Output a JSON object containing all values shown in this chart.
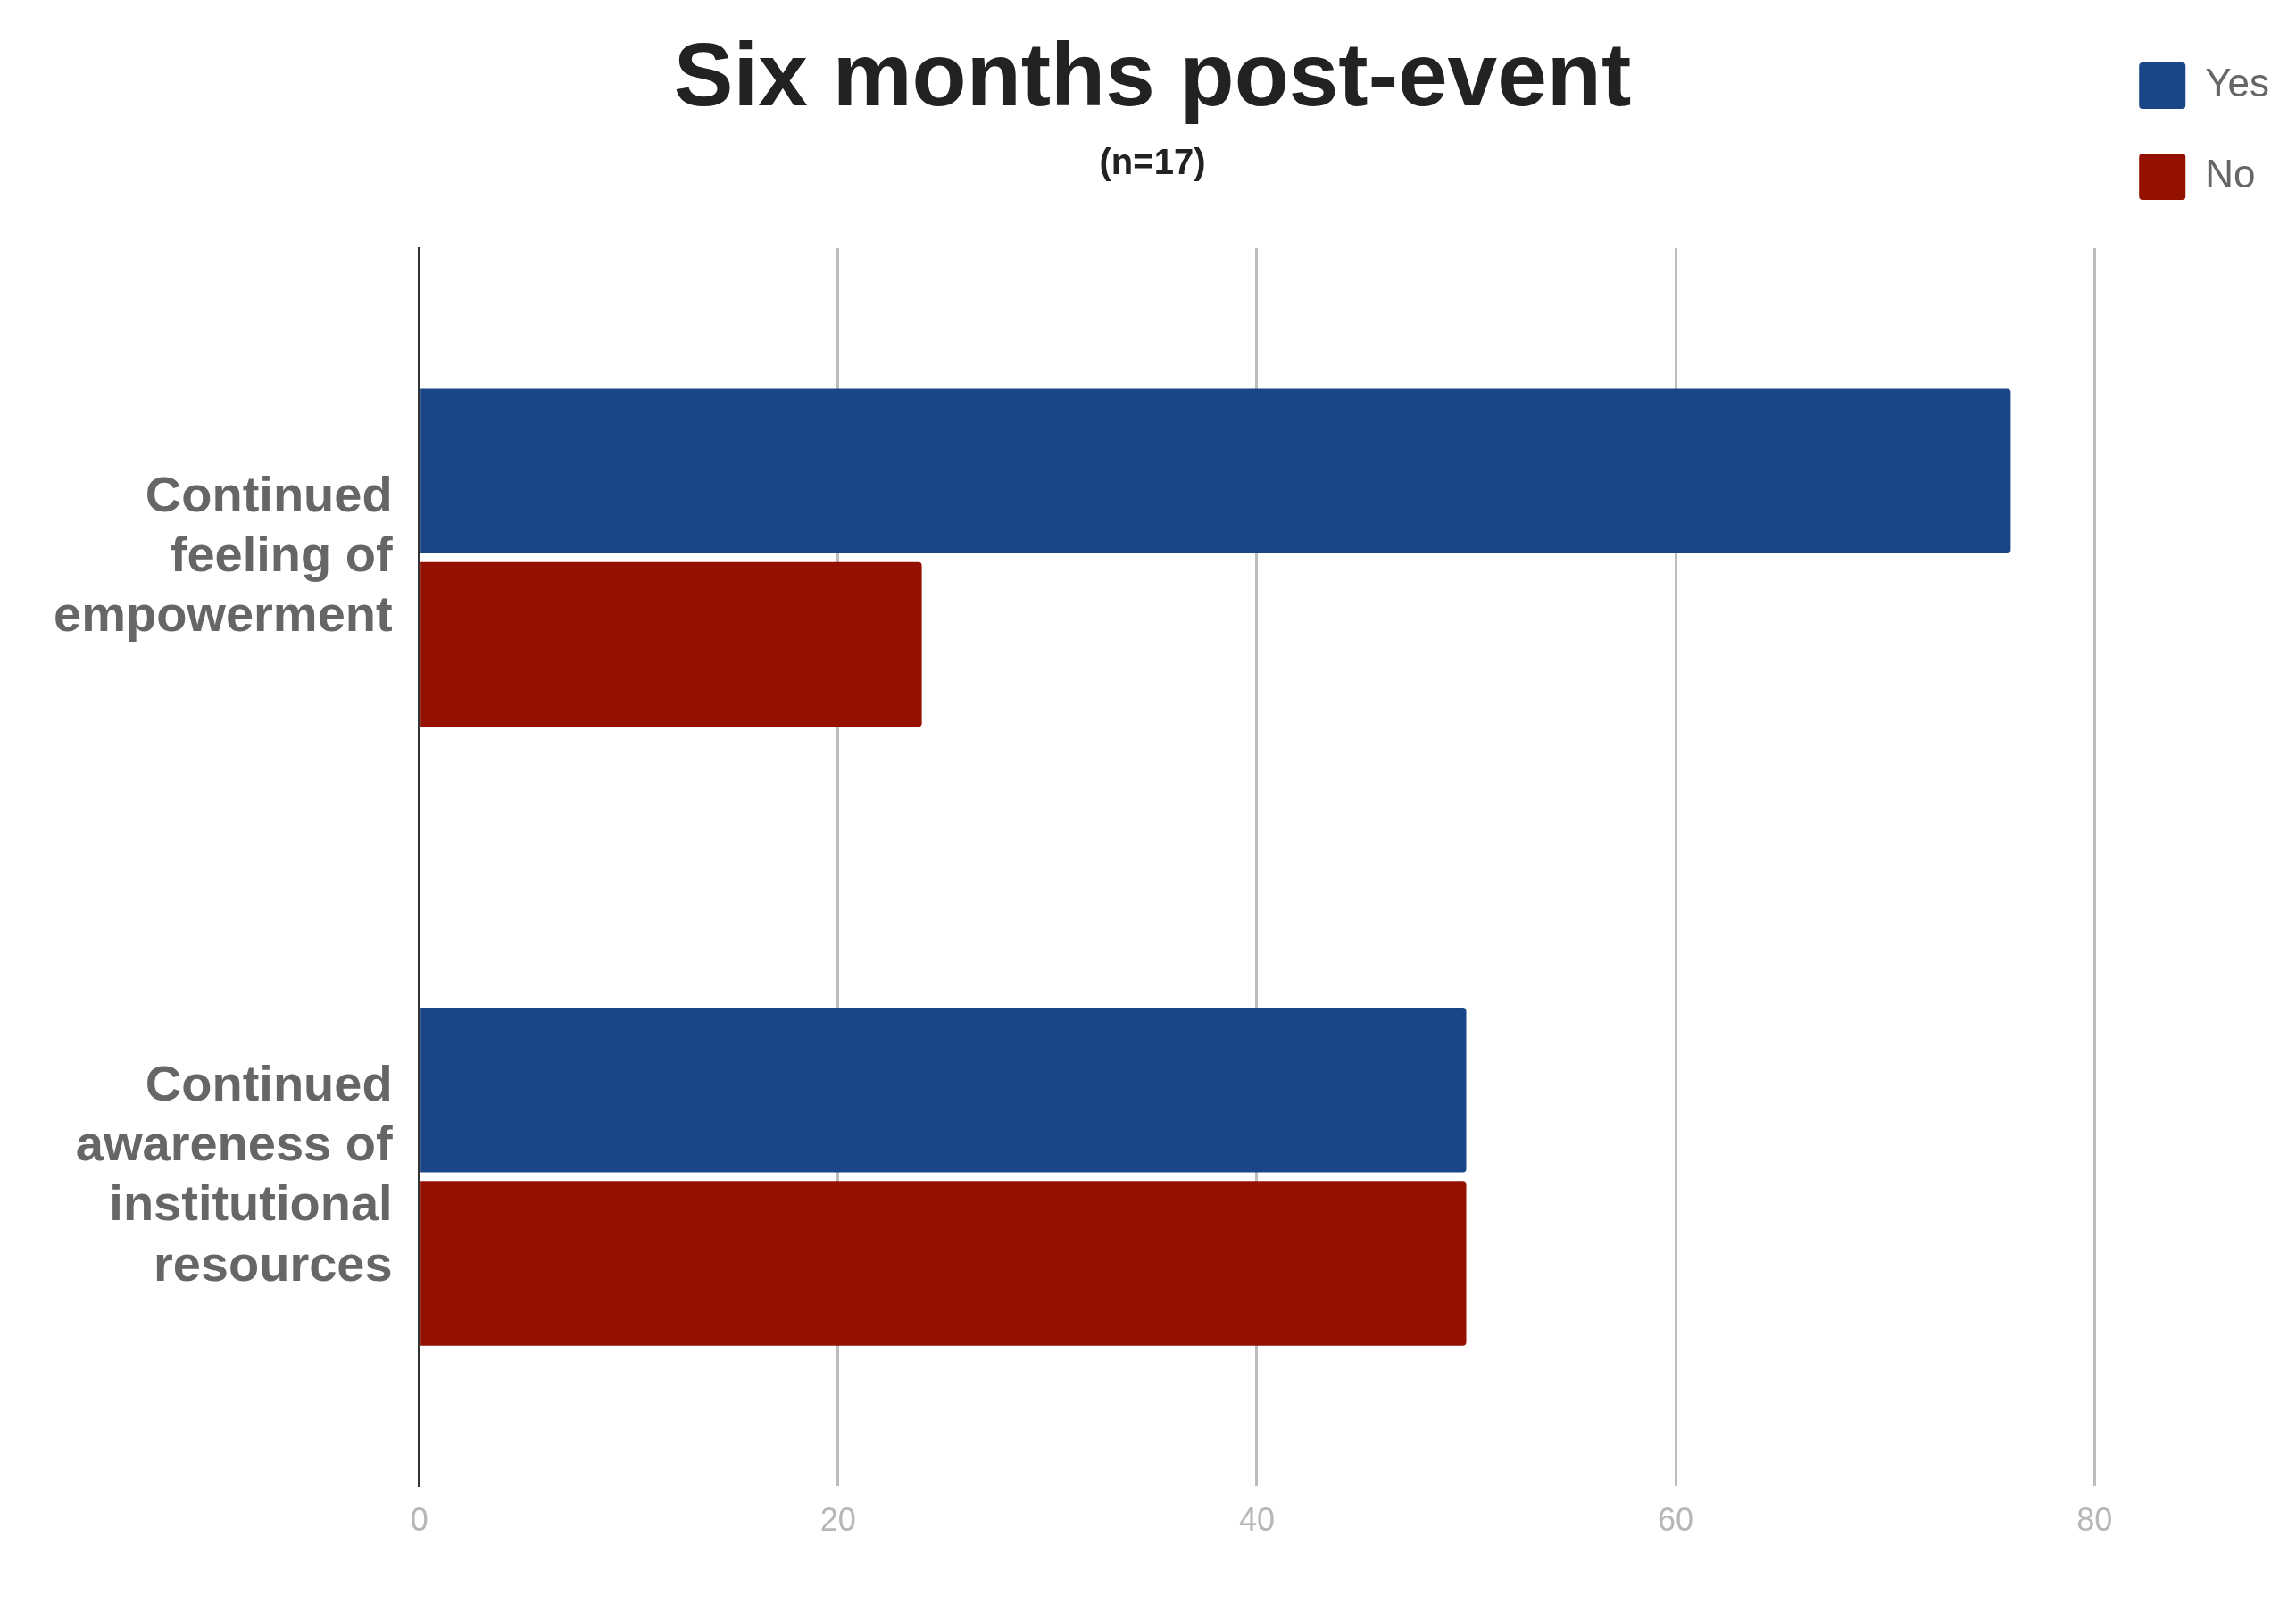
{
  "chart_data": {
    "type": "bar",
    "orientation": "horizontal",
    "title": "Six months post-event",
    "subtitle": "(n=17)",
    "categories": [
      "Continued feeling of empowerment",
      "Continued awareness of institutional resources"
    ],
    "series": [
      {
        "name": "Yes",
        "color": "#1a4586",
        "values": [
          76,
          50
        ]
      },
      {
        "name": "No",
        "color": "#941100",
        "values": [
          24,
          50
        ]
      }
    ],
    "xlim": [
      0,
      80
    ],
    "xticks": [
      0,
      20,
      40,
      60,
      80
    ],
    "grid": "x",
    "legend": "top right"
  }
}
